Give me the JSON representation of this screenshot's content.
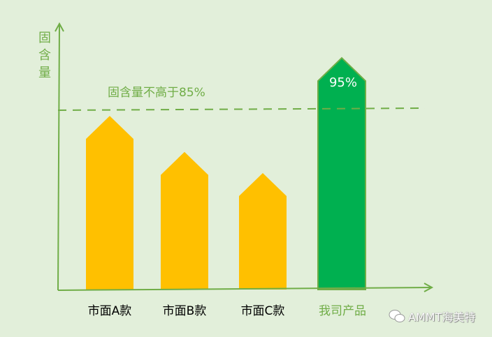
{
  "chart_data": {
    "type": "bar",
    "ylabel": "固含量",
    "categories": [
      "市面A款",
      "市面B款",
      "市面C款",
      "我司产品"
    ],
    "values": [
      82,
      65,
      55,
      95
    ],
    "data_labels": [
      "",
      "",
      "",
      "95%"
    ],
    "threshold": {
      "value": 85,
      "label": "固含量不高于85%"
    },
    "colors": {
      "market": "#FFC000",
      "ours": "#00B050",
      "axis": "#70AD47",
      "background": "#E2EFDA",
      "ours_label": "#70AD47"
    },
    "grid": false
  },
  "watermark": {
    "text": "AMMT海美特",
    "icon": "wechat-icon"
  }
}
